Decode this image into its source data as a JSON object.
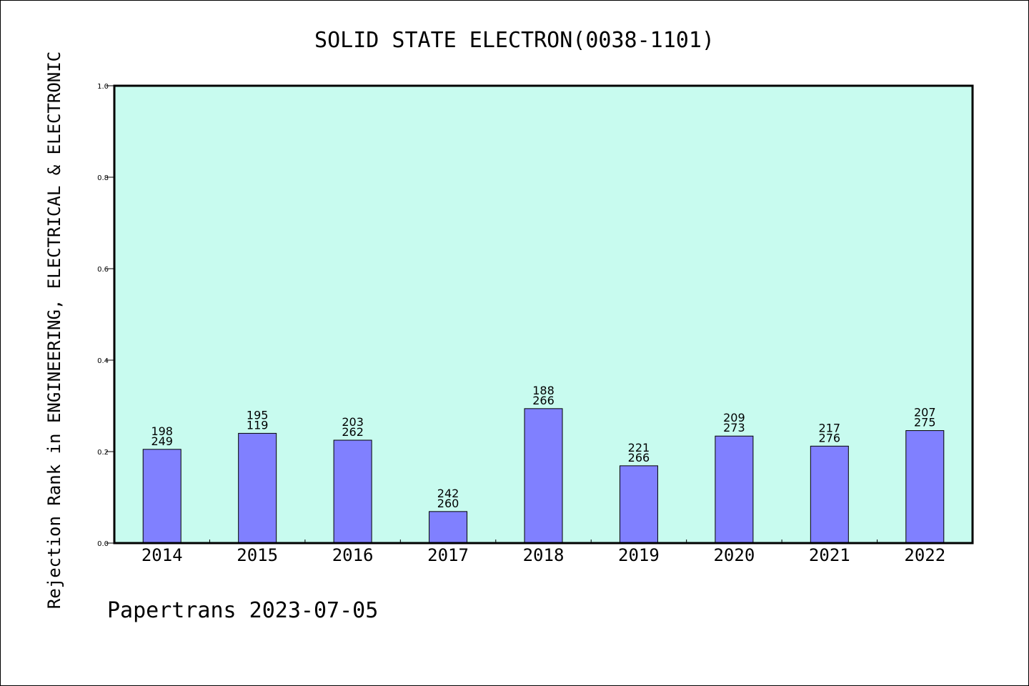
{
  "chart_data": {
    "type": "bar",
    "title": "SOLID STATE ELECTRON(0038-1101)",
    "ylabel": "Rejection Rank in ENGINEERING, ELECTRICAL & ELECTRONIC",
    "xlabel": "",
    "categories": [
      "2014",
      "2015",
      "2016",
      "2017",
      "2018",
      "2019",
      "2020",
      "2021",
      "2022"
    ],
    "values": [
      0.205,
      0.24,
      0.225,
      0.069,
      0.294,
      0.169,
      0.234,
      0.212,
      0.246
    ],
    "bar_labels_top": [
      "198",
      "195",
      "203",
      "242",
      "188",
      "221",
      "209",
      "217",
      "207"
    ],
    "bar_labels_bottom": [
      "249",
      "119",
      "262",
      "260",
      "266",
      "266",
      "273",
      "276",
      "275"
    ],
    "ylim": [
      0,
      1.0
    ],
    "yticks": [
      "0.0",
      "0.2",
      "0.4",
      "0.6",
      "0.8",
      "1.0"
    ],
    "grid": false,
    "legend": "none",
    "colors": {
      "plot_background": "#c8fbef",
      "bar_fill": "#8080ff",
      "bar_stroke": "#000000",
      "axis": "#000000"
    }
  },
  "footer": {
    "text": "Papertrans 2023-07-05"
  }
}
